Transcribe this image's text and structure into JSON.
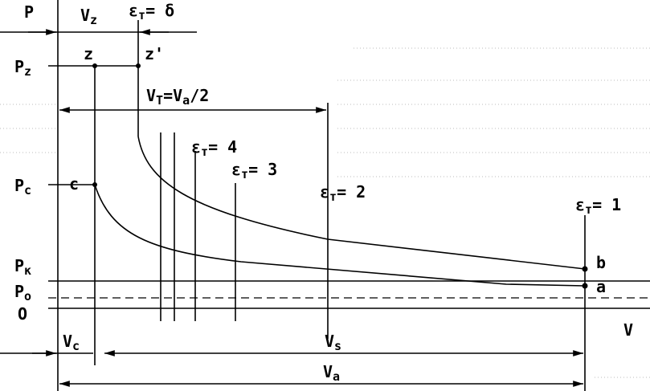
{
  "axes": {
    "p": "P",
    "v": "V",
    "origin": "O"
  },
  "left_labels": [
    {
      "main": "P",
      "sub": "z"
    },
    {
      "main": "P",
      "sub": "c"
    },
    {
      "main": "P",
      "sub": "к"
    },
    {
      "main": "P",
      "sub": "o"
    }
  ],
  "points": {
    "z": "z",
    "z_prime": "z'",
    "c": "c",
    "b": "b",
    "a": "a"
  },
  "volumes": {
    "vz": {
      "main": "V",
      "sub": "z"
    },
    "vc": {
      "main": "V",
      "sub": "c"
    },
    "vs": {
      "main": "V",
      "sub": "s"
    },
    "va": {
      "main": "V",
      "sub": "a"
    },
    "vt": {
      "main": "V",
      "sub": "T",
      "rest": "=V",
      "sub2": "a",
      "tail": "/2"
    }
  },
  "ratios": [
    {
      "main": "ε",
      "sub": "т",
      "rest": "= δ"
    },
    {
      "main": "ε",
      "sub": "т",
      "rest": "= 4"
    },
    {
      "main": "ε",
      "sub": "т",
      "rest": "= 3"
    },
    {
      "main": "ε",
      "sub": "т",
      "rest": "= 2"
    },
    {
      "main": "ε",
      "sub": "т",
      "rest": "= 1"
    }
  ]
}
